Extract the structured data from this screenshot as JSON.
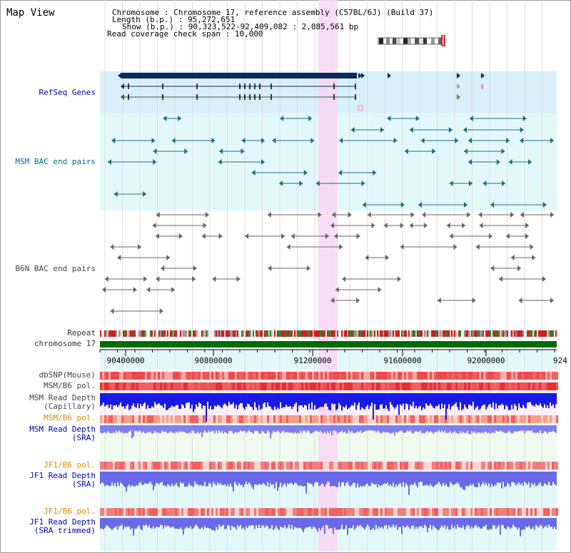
{
  "page": {
    "title": "Map View"
  },
  "info": {
    "chromosome_label": "Chromosome    : ",
    "chromosome_value": "Chromosome 17, reference assembly (C57BL/6J) (Build 37)",
    "length_label": "Length (b.p.) : ",
    "length_value": "95,272,651",
    "show_label": "Show (b.p.) : ",
    "show_value": "90,323,522-92,409,082 : 2,085,561 bp",
    "coverage_label": "Read coverage check span : ",
    "coverage_value": "10,000"
  },
  "tracks": {
    "refseq": "RefSeq Genes",
    "msm_bac": "MSM BAC end pairs",
    "b6n_bac": "B6N BAC end pairs",
    "repeat": "Repeat",
    "chromosome": "chromosome 17",
    "dbsnp": "dbSNP(Mouse)",
    "msm_b6_pol_1": "MSM/B6 pol.",
    "msm_read_depth_cap_1": "MSM Read Depth",
    "msm_read_depth_cap_2": "(Capillary)",
    "msm_b6_pol_2": "MSM/B6 pol.",
    "msm_read_depth_sra_1": "MSM Read Depth",
    "msm_read_depth_sra_2": "(SRA)",
    "jf1_b6_pol_1": "JF1/B6 pol.",
    "jf1_read_depth_1": "JF1 Read Depth",
    "jf1_read_depth_2": "(SRA)",
    "jf1_b6_pol_2": "JF1/B6 pol.",
    "jf1_read_depth_trim_1": "JF1 Read Depth",
    "jf1_read_depth_trim_2": "(SRA trimmed)"
  },
  "axis": {
    "ticks": [
      "90400000",
      "90800000",
      "91200000",
      "91600000",
      "92000000",
      "924"
    ]
  },
  "colors": {
    "refseq_bg": "#d9f0fb",
    "msm_bg": "#e3f9f9",
    "highlight": "#f9d6f3",
    "gene": "#0a2a5c",
    "msm_pair": "#1d6d89",
    "b6n_pair": "#666666",
    "chromosome_bar": "#006d00",
    "depth_cap": "#1a1ae6",
    "depth_sra": "#7f7fef",
    "snp_red": "#ee3333"
  }
}
